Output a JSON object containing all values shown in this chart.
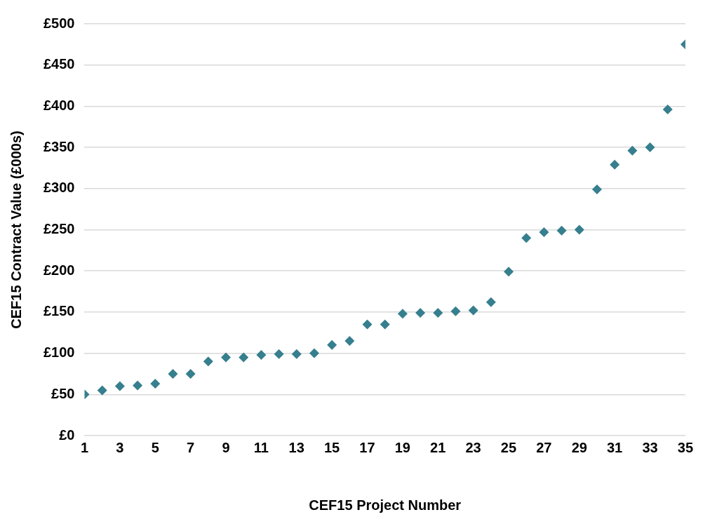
{
  "chart_data": {
    "type": "scatter",
    "xlabel": "CEF15 Project Number",
    "ylabel": "CEF15 Contract Value (£000s)",
    "x": [
      1,
      2,
      3,
      4,
      5,
      6,
      7,
      8,
      9,
      10,
      11,
      12,
      13,
      14,
      15,
      16,
      17,
      18,
      19,
      20,
      21,
      22,
      23,
      24,
      25,
      26,
      27,
      28,
      29,
      30,
      31,
      32,
      33,
      34,
      35
    ],
    "series": [
      {
        "color": "#367f8e",
        "values": [
          50,
          55,
          60,
          61,
          63,
          75,
          75,
          90,
          95,
          95,
          98,
          99,
          99,
          100,
          110,
          115,
          135,
          135,
          148,
          149,
          149,
          151,
          152,
          162,
          199,
          240,
          247,
          249,
          250,
          299,
          329,
          346,
          350,
          396,
          475
        ]
      }
    ],
    "xlim": [
      1,
      35
    ],
    "xticks": [
      1,
      3,
      5,
      7,
      9,
      11,
      13,
      15,
      17,
      19,
      21,
      23,
      25,
      27,
      29,
      31,
      33,
      35
    ],
    "ylim": [
      0,
      500
    ],
    "yticks": [
      {
        "value": 0,
        "label": "£0"
      },
      {
        "value": 50,
        "label": "£50"
      },
      {
        "value": 100,
        "label": "£100"
      },
      {
        "value": 150,
        "label": "£150"
      },
      {
        "value": 200,
        "label": "£200"
      },
      {
        "value": 250,
        "label": "£250"
      },
      {
        "value": 300,
        "label": "£300"
      },
      {
        "value": 350,
        "label": "£350"
      },
      {
        "value": 400,
        "label": "£400"
      },
      {
        "value": 450,
        "label": "£450"
      },
      {
        "value": 500,
        "label": "£500"
      }
    ],
    "grid": "y",
    "legend": false,
    "marker": "diamond"
  }
}
